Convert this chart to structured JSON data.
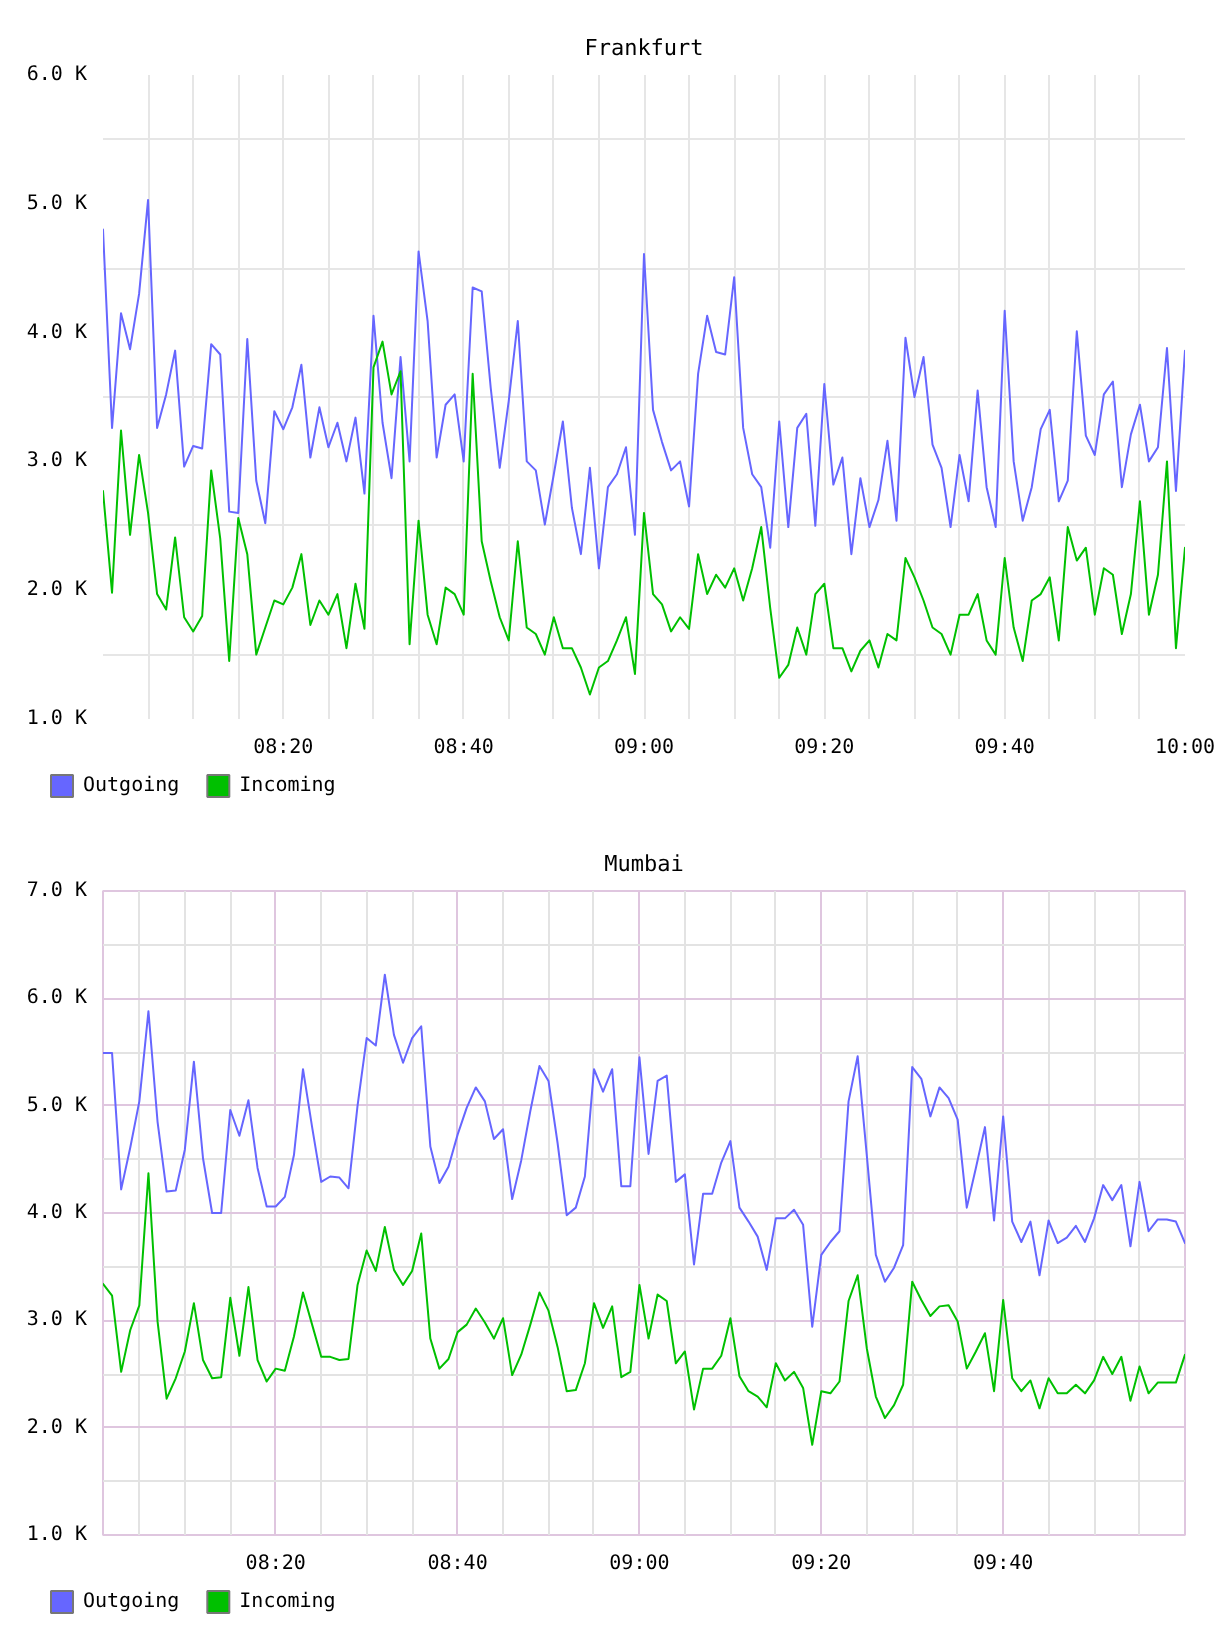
{
  "chart_data": [
    {
      "type": "line",
      "title": "Frankfurt",
      "x": [
        8,
        8.0167,
        8.0333,
        8.05,
        8.0667,
        8.0833,
        8.1,
        8.1167,
        8.1333,
        8.15,
        8.1667,
        8.1833,
        8.2,
        8.2167,
        8.2333,
        8.25,
        8.2667,
        8.2833,
        8.3,
        8.3167,
        8.3333,
        8.35,
        8.3667,
        8.3833,
        8.4,
        8.4167,
        8.4333,
        8.45,
        8.4667,
        8.4833,
        8.5,
        8.5167,
        8.5333,
        8.55,
        8.5667,
        8.5833,
        8.6,
        8.6167,
        8.6333,
        8.65,
        8.6667,
        8.6833,
        8.7,
        8.7167,
        8.7333,
        8.75,
        8.7667,
        8.7833,
        8.8,
        8.8167,
        8.8333,
        8.85,
        8.8667,
        8.8833,
        8.9,
        8.9167,
        8.9333,
        8.95,
        8.9667,
        8.9833,
        9,
        9.0167,
        9.0333,
        9.05,
        9.0667,
        9.0833,
        9.1,
        9.1167,
        9.1333,
        9.15,
        9.1667,
        9.1833,
        9.2,
        9.2167,
        9.2333,
        9.25,
        9.2667,
        9.2833,
        9.3,
        9.3167,
        9.3333,
        9.35,
        9.3667,
        9.3833,
        9.4,
        9.4167,
        9.4333,
        9.45,
        9.4667,
        9.4833,
        9.5,
        9.5167,
        9.5333,
        9.55,
        9.5667,
        9.5833,
        9.6,
        9.6167,
        9.6333,
        9.65,
        9.6667,
        9.6833,
        9.7,
        9.7167,
        9.7333,
        9.75,
        9.7667,
        9.7833,
        9.8,
        9.8167,
        9.8333,
        9.85,
        9.8667,
        9.8833,
        9.9,
        9.9167,
        9.9333,
        9.95,
        9.9667,
        9.9833,
        10
      ],
      "xlim": [
        8,
        10
      ],
      "xticks": [
        {
          "value": 8.0833,
          "label": null
        },
        {
          "value": 8.1667,
          "label": null
        },
        {
          "value": 8.25,
          "label": null
        },
        {
          "value": 8.3333,
          "label": "08:20"
        },
        {
          "value": 8.4167,
          "label": null
        },
        {
          "value": 8.5,
          "label": null
        },
        {
          "value": 8.5833,
          "label": null
        },
        {
          "value": 8.6667,
          "label": "08:40"
        },
        {
          "value": 8.75,
          "label": null
        },
        {
          "value": 8.8333,
          "label": null
        },
        {
          "value": 8.9167,
          "label": null
        },
        {
          "value": 9,
          "label": "09:00"
        },
        {
          "value": 9.0833,
          "label": null
        },
        {
          "value": 9.1667,
          "label": null
        },
        {
          "value": 9.25,
          "label": null
        },
        {
          "value": 9.3333,
          "label": "09:20"
        },
        {
          "value": 9.4167,
          "label": null
        },
        {
          "value": 9.5,
          "label": null
        },
        {
          "value": 9.5833,
          "label": null
        },
        {
          "value": 9.6667,
          "label": "09:40"
        },
        {
          "value": 9.75,
          "label": null
        },
        {
          "value": 9.8333,
          "label": null
        },
        {
          "value": 9.9167,
          "label": null
        },
        {
          "value": 10,
          "label": "10:00"
        }
      ],
      "ylim": [
        1000,
        6000
      ],
      "yticks": [
        {
          "value": 1000,
          "label": "1.0 K"
        },
        {
          "value": 1500,
          "label": null
        },
        {
          "value": 2000,
          "label": "2.0 K"
        },
        {
          "value": 2500,
          "label": null
        },
        {
          "value": 3000,
          "label": "3.0 K"
        },
        {
          "value": 3500,
          "label": null
        },
        {
          "value": 4000,
          "label": "4.0 K"
        },
        {
          "value": 4500,
          "label": null
        },
        {
          "value": 5000,
          "label": "5.0 K"
        },
        {
          "value": 5500,
          "label": null
        },
        {
          "value": 6000,
          "label": "6.0 K"
        }
      ],
      "grid": true,
      "legend": "bottom left",
      "series": [
        {
          "name": "Outgoing",
          "color": "#6666ff",
          "values": [
            4800,
            3260,
            4150,
            3870,
            4300,
            5030,
            3260,
            3520,
            3860,
            2960,
            3120,
            3100,
            3910,
            3830,
            2610,
            2600,
            3950,
            2850,
            2520,
            3390,
            3250,
            3420,
            3750,
            3030,
            3420,
            3110,
            3300,
            3000,
            3340,
            2750,
            4130,
            3300,
            2870,
            3810,
            3000,
            4630,
            4090,
            3030,
            3440,
            3520,
            3000,
            4350,
            4320,
            3570,
            2950,
            3470,
            4090,
            3000,
            2930,
            2510,
            2900,
            3310,
            2640,
            2280,
            2950,
            2170,
            2800,
            2900,
            3110,
            2430,
            4610,
            3400,
            3150,
            2930,
            3000,
            2650,
            3680,
            4130,
            3850,
            3830,
            4430,
            3260,
            2900,
            2800,
            2330,
            3310,
            2490,
            3260,
            3370,
            2500,
            3600,
            2820,
            3030,
            2280,
            2870,
            2490,
            2700,
            3160,
            2540,
            3960,
            3500,
            3810,
            3130,
            2950,
            2490,
            3050,
            2690,
            3550,
            2800,
            2490,
            4170,
            3000,
            2540,
            2800,
            3250,
            3400,
            2690,
            2850,
            4010,
            3200,
            3050,
            3520,
            3620,
            2800,
            3210,
            3440,
            3000,
            3110,
            3880,
            2770,
            3860
          ]
        },
        {
          "name": "Incoming",
          "color": "#00c000",
          "values": [
            2770,
            1980,
            3240,
            2430,
            3050,
            2600,
            1970,
            1850,
            2410,
            1790,
            1680,
            1800,
            2930,
            2400,
            1450,
            2560,
            2280,
            1500,
            1710,
            1920,
            1890,
            2020,
            2280,
            1730,
            1920,
            1810,
            1970,
            1550,
            2050,
            1700,
            3730,
            3930,
            3520,
            3700,
            1580,
            2540,
            1810,
            1580,
            2020,
            1970,
            1810,
            3680,
            2380,
            2070,
            1790,
            1610,
            2380,
            1710,
            1660,
            1500,
            1790,
            1550,
            1550,
            1400,
            1190,
            1400,
            1450,
            1610,
            1790,
            1350,
            2600,
            1970,
            1890,
            1680,
            1790,
            1700,
            2280,
            1970,
            2120,
            2020,
            2170,
            1920,
            2170,
            2490,
            1860,
            1320,
            1420,
            1710,
            1500,
            1970,
            2050,
            1550,
            1550,
            1370,
            1530,
            1610,
            1400,
            1660,
            1610,
            2250,
            2100,
            1920,
            1710,
            1660,
            1500,
            1810,
            1810,
            1970,
            1610,
            1500,
            2250,
            1710,
            1450,
            1920,
            1970,
            2100,
            1610,
            2490,
            2230,
            2330,
            1810,
            2170,
            2120,
            1660,
            1970,
            2690,
            1810,
            2120,
            3000,
            1550,
            2330
          ]
        }
      ]
    },
    {
      "type": "line",
      "title": "Mumbai",
      "x": [
        8.0167,
        8.0333,
        8.05,
        8.0667,
        8.0833,
        8.1,
        8.1167,
        8.1333,
        8.15,
        8.1667,
        8.1833,
        8.2,
        8.2167,
        8.2333,
        8.25,
        8.2667,
        8.2833,
        8.3,
        8.3167,
        8.3333,
        8.35,
        8.3667,
        8.3833,
        8.4,
        8.4167,
        8.4333,
        8.45,
        8.4667,
        8.4833,
        8.5,
        8.5167,
        8.5333,
        8.55,
        8.5667,
        8.5833,
        8.6,
        8.6167,
        8.6333,
        8.65,
        8.6667,
        8.6833,
        8.7,
        8.7167,
        8.7333,
        8.75,
        8.7667,
        8.7833,
        8.8,
        8.8167,
        8.8333,
        8.85,
        8.8667,
        8.8833,
        8.9,
        8.9167,
        8.9333,
        8.95,
        8.9667,
        8.9833,
        9,
        9.0167,
        9.0333,
        9.05,
        9.0667,
        9.0833,
        9.1,
        9.1167,
        9.1333,
        9.15,
        9.1667,
        9.1833,
        9.2,
        9.2167,
        9.2333,
        9.25,
        9.2667,
        9.2833,
        9.3,
        9.3167,
        9.3333,
        9.35,
        9.3667,
        9.3833,
        9.4,
        9.4167,
        9.4333,
        9.45,
        9.4667,
        9.4833,
        9.5,
        9.5167,
        9.5333,
        9.55,
        9.5667,
        9.5833,
        9.6,
        9.6167,
        9.6333,
        9.65,
        9.6667,
        9.6833,
        9.7,
        9.7167,
        9.7333,
        9.75,
        9.7667,
        9.7833,
        9.8,
        9.8167,
        9.8333,
        9.85,
        9.8667,
        9.8833,
        9.9,
        9.9167,
        9.9333,
        9.95,
        9.9667,
        9.9833,
        10
      ],
      "xlim": [
        8.0167,
        10
      ],
      "xticks": [
        {
          "value": 8.0833,
          "label": null
        },
        {
          "value": 8.1667,
          "label": null
        },
        {
          "value": 8.25,
          "label": null
        },
        {
          "value": 8.3333,
          "label": "08:20"
        },
        {
          "value": 8.4167,
          "label": null
        },
        {
          "value": 8.5,
          "label": null
        },
        {
          "value": 8.5833,
          "label": null
        },
        {
          "value": 8.6667,
          "label": "08:40"
        },
        {
          "value": 8.75,
          "label": null
        },
        {
          "value": 8.8333,
          "label": null
        },
        {
          "value": 8.9167,
          "label": null
        },
        {
          "value": 9,
          "label": "09:00"
        },
        {
          "value": 9.0833,
          "label": null
        },
        {
          "value": 9.1667,
          "label": null
        },
        {
          "value": 9.25,
          "label": null
        },
        {
          "value": 9.3333,
          "label": "09:20"
        },
        {
          "value": 9.4167,
          "label": null
        },
        {
          "value": 9.5,
          "label": null
        },
        {
          "value": 9.5833,
          "label": null
        },
        {
          "value": 9.6667,
          "label": "09:40"
        },
        {
          "value": 9.75,
          "label": null
        },
        {
          "value": 9.8333,
          "label": null
        },
        {
          "value": 9.9167,
          "label": null
        }
      ],
      "ylim": [
        1000,
        7000
      ],
      "yticks": [
        {
          "value": 1000,
          "label": "1.0 K"
        },
        {
          "value": 1500,
          "label": null
        },
        {
          "value": 2000,
          "label": "2.0 K"
        },
        {
          "value": 2500,
          "label": null
        },
        {
          "value": 3000,
          "label": "3.0 K"
        },
        {
          "value": 3500,
          "label": null
        },
        {
          "value": 4000,
          "label": "4.0 K"
        },
        {
          "value": 4500,
          "label": null
        },
        {
          "value": 5000,
          "label": "5.0 K"
        },
        {
          "value": 5500,
          "label": null
        },
        {
          "value": 6000,
          "label": "6.0 K"
        },
        {
          "value": 6500,
          "label": null
        },
        {
          "value": 7000,
          "label": "7.0 K"
        }
      ],
      "grid": true,
      "legend": "bottom left",
      "series": [
        {
          "name": "Outgoing",
          "color": "#6666ff",
          "values": [
            5490,
            5490,
            4220,
            4610,
            5040,
            5880,
            4850,
            4200,
            4210,
            4590,
            5410,
            4510,
            4000,
            4000,
            4960,
            4720,
            5050,
            4420,
            4060,
            4060,
            4150,
            4540,
            5340,
            4800,
            4290,
            4340,
            4330,
            4230,
            5000,
            5630,
            5560,
            6220,
            5660,
            5400,
            5630,
            5740,
            4620,
            4280,
            4430,
            4730,
            4980,
            5170,
            5040,
            4690,
            4780,
            4130,
            4490,
            4950,
            5370,
            5230,
            4650,
            3980,
            4050,
            4340,
            5340,
            5130,
            5340,
            4250,
            4250,
            5450,
            4550,
            5230,
            5280,
            4290,
            4360,
            3520,
            4180,
            4180,
            4470,
            4670,
            4050,
            3920,
            3780,
            3470,
            3950,
            3950,
            4030,
            3890,
            2940,
            3610,
            3730,
            3830,
            5040,
            5460,
            4540,
            3610,
            3360,
            3490,
            3700,
            5360,
            5250,
            4900,
            5170,
            5070,
            4870,
            4050,
            4420,
            4800,
            3930,
            4900,
            3920,
            3730,
            3920,
            3420,
            3930,
            3720,
            3770,
            3880,
            3730,
            3950,
            4260,
            4120,
            4260,
            3690,
            4290,
            3830,
            3940,
            3940,
            3920,
            3720
          ]
        },
        {
          "name": "Incoming",
          "color": "#00c000",
          "values": [
            3340,
            3230,
            2520,
            2910,
            3140,
            4370,
            2990,
            2270,
            2460,
            2710,
            3160,
            2630,
            2460,
            2470,
            3210,
            2670,
            3310,
            2630,
            2430,
            2550,
            2530,
            2850,
            3260,
            2960,
            2660,
            2660,
            2630,
            2640,
            3330,
            3650,
            3460,
            3870,
            3470,
            3330,
            3460,
            3810,
            2830,
            2550,
            2640,
            2890,
            2960,
            3110,
            2980,
            2830,
            3020,
            2490,
            2680,
            2960,
            3260,
            3090,
            2750,
            2340,
            2350,
            2600,
            3160,
            2930,
            3130,
            2470,
            2520,
            3330,
            2830,
            3240,
            3180,
            2600,
            2710,
            2170,
            2550,
            2550,
            2670,
            3020,
            2480,
            2340,
            2290,
            2190,
            2600,
            2440,
            2520,
            2370,
            1840,
            2340,
            2320,
            2430,
            3180,
            3420,
            2740,
            2290,
            2090,
            2210,
            2400,
            3360,
            3190,
            3040,
            3130,
            3140,
            2990,
            2550,
            2710,
            2880,
            2340,
            3190,
            2460,
            2340,
            2440,
            2180,
            2460,
            2320,
            2320,
            2400,
            2320,
            2440,
            2660,
            2500,
            2660,
            2250,
            2570,
            2320,
            2420,
            2420,
            2420,
            2680
          ]
        }
      ]
    }
  ]
}
